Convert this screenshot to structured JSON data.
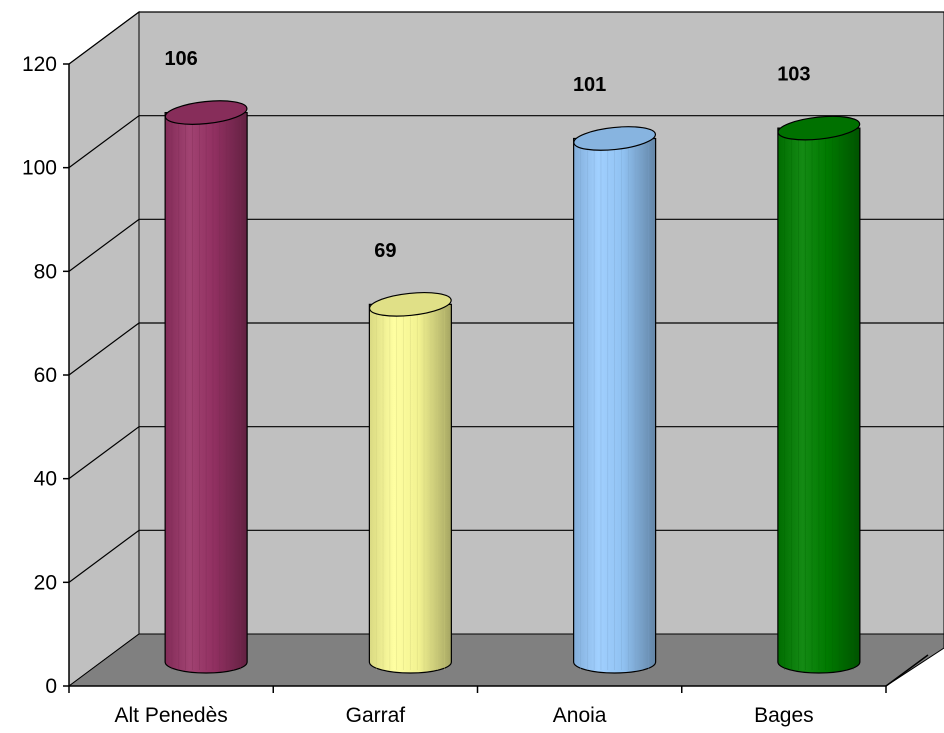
{
  "chart_data": {
    "type": "bar",
    "style": "3d-cylinder",
    "categories": [
      "Alt Penedès",
      "Garraf",
      "Anoia",
      "Bages"
    ],
    "values": [
      106,
      69,
      101,
      103
    ],
    "data_labels": [
      "106",
      "69",
      "101",
      "103"
    ],
    "colors": [
      "#993366",
      "#FFFF99",
      "#99CCFF",
      "#008000"
    ],
    "yticks": [
      0,
      20,
      40,
      60,
      80,
      100,
      120
    ],
    "ytick_labels": [
      "0",
      "20",
      "40",
      "60",
      "80",
      "100",
      "120"
    ],
    "ylim": [
      0,
      120
    ],
    "grid": true,
    "wall_color": "#C0C0C0",
    "floor_color": "#808080",
    "legend": false
  }
}
